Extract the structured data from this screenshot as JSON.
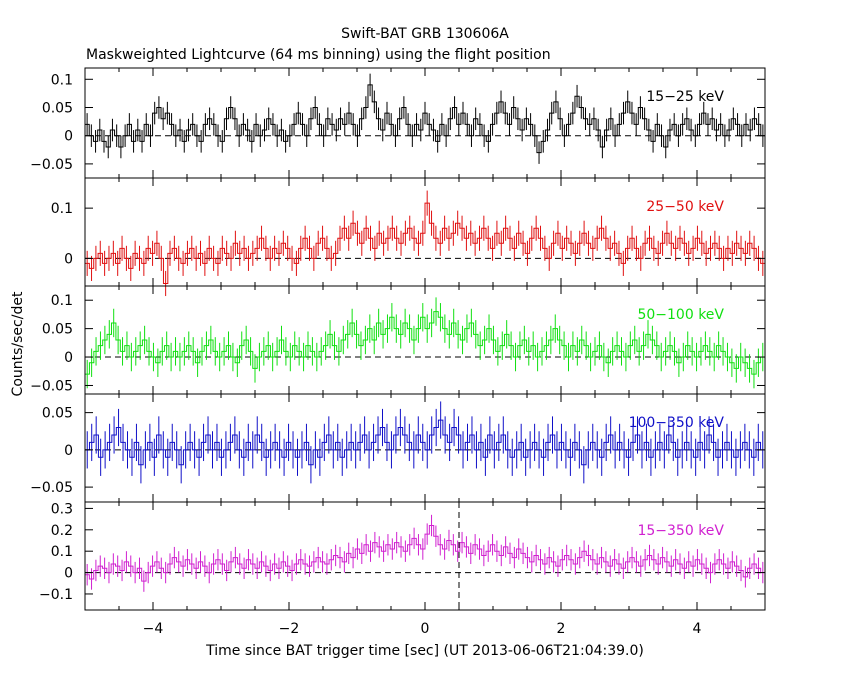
{
  "title": "Swift-BAT GRB 130606A",
  "subtitle": "Maskweighted Lightcurve (64 ms binning) using the flight position",
  "chart_data": {
    "type": "line",
    "style": "step histogram with error bars",
    "xlabel": "Time since BAT trigger time [sec] (UT 2013-06-06T21:04:39.0)",
    "ylabel": "Counts/sec/det",
    "xlim": [
      -5,
      5
    ],
    "xticks": [
      -4,
      -2,
      0,
      2,
      4
    ],
    "xtick_labels": [
      "−4",
      "−2",
      "0",
      "2",
      "4"
    ],
    "bin_width_s": 0.064,
    "grid": false,
    "panels": [
      {
        "name": "15−25 keV",
        "color": "#000000",
        "ylim": [
          -0.075,
          0.12
        ],
        "yticks": [
          -0.05,
          0,
          0.05,
          0.1
        ],
        "ytick_labels": [
          "−0.05",
          "0",
          "0.05",
          "0.1"
        ],
        "error": 0.02,
        "values": [
          0.02,
          0.0,
          -0.01,
          0.01,
          -0.01,
          -0.02,
          0.01,
          0.0,
          -0.02,
          0.0,
          0.02,
          -0.01,
          0.01,
          -0.01,
          0.02,
          0.0,
          0.04,
          0.05,
          0.03,
          0.04,
          0.02,
          0.0,
          0.01,
          -0.01,
          0.01,
          0.02,
          0.0,
          -0.01,
          0.02,
          0.03,
          0.02,
          0.0,
          -0.01,
          0.03,
          0.05,
          0.03,
          0.0,
          0.02,
          0.01,
          -0.01,
          0.02,
          0.0,
          0.01,
          0.03,
          0.02,
          0.0,
          0.01,
          -0.01,
          0.0,
          0.02,
          0.04,
          0.02,
          0.0,
          0.03,
          0.05,
          0.02,
          0.0,
          0.03,
          0.02,
          0.01,
          0.03,
          0.02,
          0.04,
          0.02,
          0.0,
          0.03,
          0.05,
          0.09,
          0.06,
          0.03,
          0.01,
          0.04,
          0.02,
          0.0,
          0.03,
          0.05,
          0.02,
          0.0,
          0.02,
          0.01,
          0.04,
          0.02,
          0.01,
          -0.01,
          0.02,
          0.0,
          0.03,
          0.05,
          0.02,
          0.04,
          0.02,
          0.0,
          0.03,
          0.02,
          0.0,
          -0.01,
          0.02,
          0.04,
          0.06,
          0.04,
          0.02,
          0.05,
          0.03,
          0.01,
          0.03,
          0.02,
          0.0,
          -0.03,
          -0.01,
          0.01,
          0.04,
          0.06,
          0.03,
          0.0,
          0.02,
          0.04,
          0.07,
          0.05,
          0.03,
          0.02,
          0.03,
          0.01,
          -0.02,
          0.01,
          0.03,
          0.0,
          0.02,
          0.04,
          0.06,
          0.04,
          0.02,
          0.05,
          0.03,
          0.01,
          -0.01,
          0.02,
          0.0,
          -0.02,
          0.01,
          0.02,
          0.0,
          0.02,
          0.03,
          0.01,
          0.0,
          0.02,
          0.04,
          0.02,
          0.03,
          0.01,
          0.02,
          0.0,
          0.01,
          0.03,
          0.02,
          0.0,
          0.02,
          0.01,
          0.03,
          0.02,
          0.0
        ]
      },
      {
        "name": "25−50 keV",
        "color": "#e01010",
        "ylim": [
          -0.055,
          0.16
        ],
        "yticks": [
          0,
          0.1
        ],
        "ytick_labels": [
          "0",
          "0.1"
        ],
        "error": 0.025,
        "values": [
          -0.01,
          -0.02,
          0.0,
          0.01,
          -0.01,
          0.0,
          0.01,
          -0.01,
          0.02,
          0.0,
          -0.02,
          0.01,
          0.0,
          -0.01,
          0.02,
          0.01,
          0.03,
          0.0,
          -0.05,
          0.01,
          0.02,
          0.0,
          -0.01,
          0.01,
          0.02,
          0.0,
          0.01,
          -0.01,
          0.02,
          0.0,
          -0.01,
          0.02,
          0.01,
          0.0,
          0.03,
          0.01,
          0.02,
          0.0,
          0.01,
          0.02,
          0.04,
          0.02,
          0.0,
          0.02,
          0.01,
          0.03,
          0.02,
          0.0,
          -0.01,
          0.02,
          0.04,
          0.02,
          0.0,
          0.03,
          0.04,
          0.02,
          0.0,
          0.01,
          0.04,
          0.06,
          0.04,
          0.07,
          0.05,
          0.03,
          0.06,
          0.04,
          0.02,
          0.05,
          0.03,
          0.04,
          0.06,
          0.04,
          0.03,
          0.05,
          0.06,
          0.04,
          0.03,
          0.05,
          0.11,
          0.07,
          0.04,
          0.03,
          0.06,
          0.04,
          0.05,
          0.07,
          0.06,
          0.04,
          0.05,
          0.03,
          0.04,
          0.06,
          0.04,
          0.02,
          0.05,
          0.03,
          0.06,
          0.04,
          0.02,
          0.05,
          0.03,
          0.01,
          0.04,
          0.06,
          0.04,
          0.02,
          0.0,
          0.03,
          0.05,
          0.02,
          0.04,
          0.03,
          0.01,
          0.03,
          0.05,
          0.03,
          0.02,
          0.04,
          0.06,
          0.04,
          0.02,
          0.03,
          0.01,
          -0.01,
          0.02,
          0.04,
          0.02,
          0.0,
          0.03,
          0.04,
          0.02,
          0.01,
          0.03,
          0.05,
          0.03,
          0.02,
          0.04,
          0.03,
          0.01,
          0.02,
          0.04,
          0.03,
          0.01,
          0.02,
          0.03,
          0.02,
          0.0,
          0.02,
          0.01,
          0.03,
          0.02,
          0.01,
          0.03,
          0.02,
          0.0,
          -0.01
        ]
      },
      {
        "name": "50−100 keV",
        "color": "#10e010",
        "ylim": [
          -0.065,
          0.125
        ],
        "yticks": [
          -0.05,
          0,
          0.05,
          0.1
        ],
        "ytick_labels": [
          "−0.05",
          "0",
          "0.05",
          "0.1"
        ],
        "error": 0.025,
        "values": [
          -0.03,
          -0.01,
          0.01,
          0.02,
          0.03,
          0.04,
          0.06,
          0.03,
          0.01,
          0.02,
          0.0,
          0.01,
          0.02,
          0.03,
          0.01,
          0.0,
          -0.01,
          0.01,
          0.02,
          0.0,
          0.01,
          0.0,
          0.01,
          0.02,
          0.01,
          -0.01,
          0.01,
          0.02,
          0.03,
          0.01,
          0.0,
          0.01,
          0.02,
          0.0,
          -0.01,
          0.02,
          0.03,
          0.01,
          -0.02,
          0.0,
          0.01,
          0.02,
          0.0,
          0.01,
          0.03,
          0.01,
          0.0,
          0.02,
          0.01,
          0.0,
          0.02,
          0.01,
          0.0,
          0.01,
          0.02,
          0.04,
          0.02,
          0.01,
          0.03,
          0.04,
          0.06,
          0.04,
          0.02,
          0.03,
          0.05,
          0.03,
          0.06,
          0.04,
          0.05,
          0.07,
          0.05,
          0.04,
          0.06,
          0.05,
          0.03,
          0.05,
          0.07,
          0.05,
          0.06,
          0.08,
          0.07,
          0.05,
          0.04,
          0.06,
          0.04,
          0.03,
          0.05,
          0.06,
          0.04,
          0.02,
          0.03,
          0.05,
          0.03,
          0.01,
          0.02,
          0.04,
          0.02,
          0.0,
          0.02,
          0.03,
          0.01,
          0.02,
          0.0,
          0.01,
          0.02,
          0.03,
          0.05,
          0.03,
          0.02,
          0.0,
          0.02,
          0.01,
          0.03,
          0.02,
          0.0,
          0.01,
          0.02,
          0.0,
          -0.01,
          0.01,
          0.02,
          0.01,
          0.0,
          0.02,
          0.03,
          0.01,
          0.02,
          0.04,
          0.03,
          0.02,
          0.0,
          0.01,
          0.02,
          0.01,
          -0.01,
          0.0,
          0.02,
          0.01,
          0.0,
          0.01,
          0.02,
          0.01,
          0.0,
          0.02,
          0.01,
          0.0,
          -0.01,
          -0.02,
          0.0,
          -0.01,
          -0.02,
          -0.03,
          -0.01,
          0.0
        ]
      },
      {
        "name": "100−350 keV",
        "color": "#1010c8",
        "ylim": [
          -0.07,
          0.075
        ],
        "yticks": [
          -0.05,
          0,
          0.05
        ],
        "ytick_labels": [
          "−0.05",
          "0",
          "0.05"
        ],
        "error": 0.025,
        "values": [
          0.0,
          0.01,
          0.02,
          -0.01,
          0.0,
          0.01,
          0.02,
          0.03,
          0.01,
          0.0,
          -0.01,
          0.01,
          -0.02,
          0.0,
          0.01,
          -0.01,
          0.02,
          0.0,
          -0.01,
          0.01,
          0.0,
          -0.02,
          0.0,
          0.01,
          0.0,
          -0.01,
          0.01,
          0.02,
          0.0,
          0.01,
          -0.01,
          0.0,
          0.01,
          0.02,
          0.0,
          -0.01,
          0.01,
          0.0,
          0.02,
          0.01,
          -0.01,
          0.0,
          0.01,
          0.0,
          -0.01,
          0.01,
          0.0,
          -0.01,
          0.0,
          0.01,
          -0.02,
          0.0,
          -0.01,
          0.01,
          0.02,
          0.0,
          0.01,
          -0.01,
          0.0,
          0.01,
          0.0,
          0.01,
          0.02,
          0.0,
          0.01,
          0.02,
          0.03,
          0.01,
          0.0,
          0.02,
          0.03,
          0.02,
          0.01,
          0.0,
          0.02,
          0.01,
          0.0,
          0.02,
          0.03,
          0.04,
          0.02,
          0.01,
          0.03,
          0.02,
          0.0,
          0.01,
          0.02,
          0.0,
          0.01,
          -0.01,
          0.02,
          0.0,
          0.01,
          0.02,
          0.0,
          -0.01,
          0.0,
          0.01,
          -0.01,
          0.0,
          0.01,
          0.0,
          -0.01,
          0.01,
          0.02,
          0.0,
          0.01,
          0.0,
          -0.01,
          0.01,
          0.0,
          -0.02,
          0.0,
          0.01,
          0.0,
          -0.01,
          0.01,
          0.02,
          0.0,
          0.01,
          0.0,
          -0.01,
          0.01,
          0.02,
          0.0,
          0.01,
          -0.01,
          0.0,
          0.01,
          0.0,
          0.02,
          0.01,
          -0.01,
          0.0,
          0.01,
          0.0,
          -0.01,
          0.01,
          0.0,
          0.02,
          0.01,
          -0.01,
          0.0,
          0.01,
          0.0,
          -0.01,
          0.0,
          0.01,
          0.0,
          -0.01,
          0.01,
          0.0
        ]
      },
      {
        "name": "15−350 keV",
        "color": "#d020d0",
        "ylim": [
          -0.175,
          0.33
        ],
        "yticks": [
          -0.1,
          0,
          0.1,
          0.2,
          0.3
        ],
        "ytick_labels": [
          "−0.1",
          "0",
          "0.1",
          "0.2",
          "0.3"
        ],
        "error": 0.05,
        "marker_x": 0.5,
        "values": [
          -0.01,
          -0.03,
          0.01,
          0.03,
          0.02,
          0.0,
          0.04,
          0.03,
          0.01,
          0.05,
          0.03,
          0.0,
          0.02,
          -0.04,
          0.0,
          0.03,
          0.05,
          0.02,
          0.0,
          0.04,
          0.07,
          0.05,
          0.03,
          0.06,
          0.04,
          0.02,
          0.05,
          0.03,
          0.0,
          0.04,
          0.06,
          0.04,
          0.01,
          0.05,
          0.07,
          0.04,
          0.02,
          0.06,
          0.04,
          0.02,
          0.05,
          0.03,
          0.01,
          0.04,
          0.02,
          0.05,
          0.03,
          0.01,
          0.04,
          0.06,
          0.04,
          0.03,
          0.05,
          0.07,
          0.05,
          0.04,
          0.06,
          0.08,
          0.07,
          0.05,
          0.09,
          0.07,
          0.11,
          0.09,
          0.13,
          0.1,
          0.14,
          0.12,
          0.1,
          0.13,
          0.11,
          0.14,
          0.12,
          0.1,
          0.13,
          0.16,
          0.13,
          0.11,
          0.18,
          0.22,
          0.17,
          0.13,
          0.11,
          0.15,
          0.13,
          0.1,
          0.14,
          0.12,
          0.09,
          0.13,
          0.11,
          0.08,
          0.1,
          0.13,
          0.1,
          0.08,
          0.12,
          0.09,
          0.07,
          0.11,
          0.09,
          0.07,
          0.05,
          0.08,
          0.06,
          0.04,
          0.07,
          0.05,
          0.03,
          0.06,
          0.08,
          0.06,
          0.04,
          0.07,
          0.1,
          0.08,
          0.06,
          0.04,
          0.07,
          0.05,
          0.03,
          0.06,
          0.04,
          0.02,
          0.05,
          0.07,
          0.05,
          0.03,
          0.06,
          0.08,
          0.06,
          0.04,
          0.07,
          0.05,
          0.03,
          0.06,
          0.04,
          0.02,
          0.05,
          0.03,
          0.06,
          0.04,
          0.02,
          0.0,
          0.04,
          0.06,
          0.04,
          0.02,
          0.05,
          0.03,
          0.01,
          -0.02,
          0.02,
          0.04,
          0.02,
          0.0
        ]
      }
    ]
  }
}
